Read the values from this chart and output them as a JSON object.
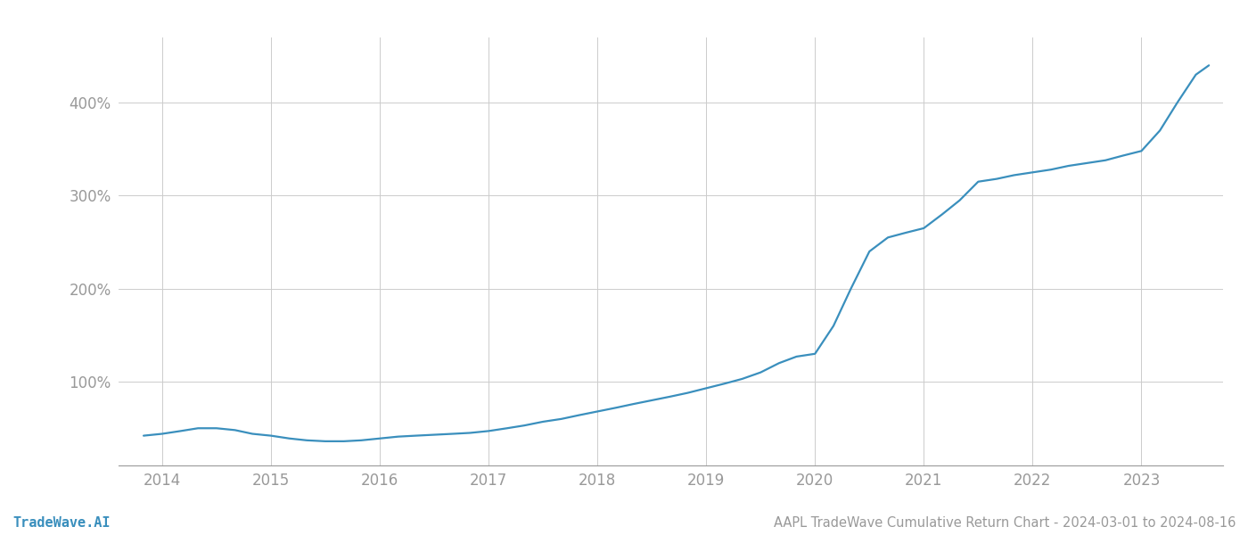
{
  "title": "AAPL TradeWave Cumulative Return Chart - 2024-03-01 to 2024-08-16",
  "watermark": "TradeWave.AI",
  "line_color": "#3a8fbd",
  "background_color": "#ffffff",
  "grid_color": "#cccccc",
  "x_years": [
    2014,
    2015,
    2016,
    2017,
    2018,
    2019,
    2020,
    2021,
    2022,
    2023
  ],
  "x_data": [
    2013.83,
    2014.0,
    2014.17,
    2014.33,
    2014.5,
    2014.67,
    2014.83,
    2015.0,
    2015.17,
    2015.33,
    2015.5,
    2015.67,
    2015.83,
    2016.0,
    2016.17,
    2016.33,
    2016.5,
    2016.67,
    2016.83,
    2017.0,
    2017.17,
    2017.33,
    2017.5,
    2017.67,
    2017.83,
    2018.0,
    2018.17,
    2018.33,
    2018.5,
    2018.67,
    2018.83,
    2019.0,
    2019.17,
    2019.33,
    2019.5,
    2019.67,
    2019.83,
    2020.0,
    2020.17,
    2020.33,
    2020.5,
    2020.67,
    2020.83,
    2021.0,
    2021.17,
    2021.33,
    2021.5,
    2021.67,
    2021.83,
    2022.0,
    2022.17,
    2022.33,
    2022.5,
    2022.67,
    2022.83,
    2023.0,
    2023.17,
    2023.33,
    2023.5,
    2023.62
  ],
  "y_data": [
    42,
    44,
    47,
    50,
    50,
    48,
    44,
    42,
    39,
    37,
    36,
    36,
    37,
    39,
    41,
    42,
    43,
    44,
    45,
    47,
    50,
    53,
    57,
    60,
    64,
    68,
    72,
    76,
    80,
    84,
    88,
    93,
    98,
    103,
    110,
    120,
    127,
    130,
    160,
    200,
    240,
    255,
    260,
    265,
    280,
    295,
    315,
    318,
    322,
    325,
    328,
    332,
    335,
    338,
    343,
    348,
    370,
    400,
    430,
    440
  ],
  "yticks": [
    100,
    200,
    300,
    400
  ],
  "ylim": [
    10,
    470
  ],
  "xlim": [
    2013.6,
    2023.75
  ],
  "title_fontsize": 10.5,
  "watermark_fontsize": 11,
  "tick_fontsize": 12,
  "line_width": 1.6
}
